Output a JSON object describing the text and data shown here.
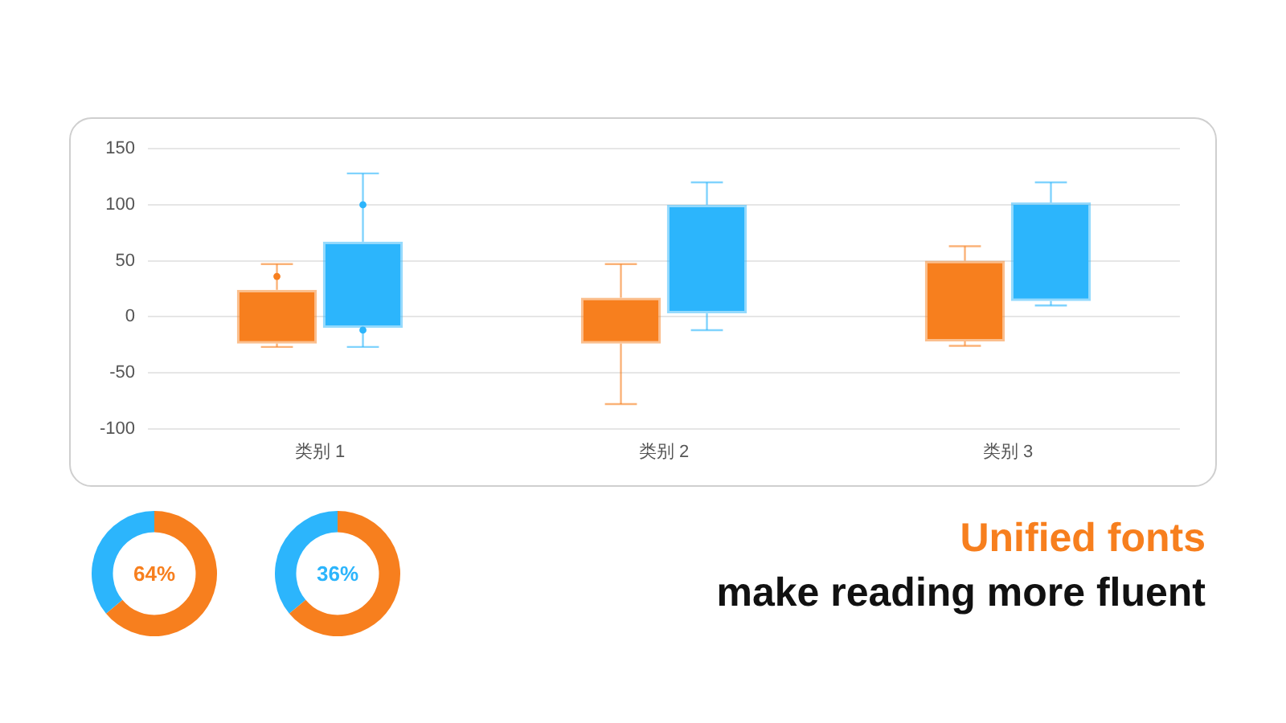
{
  "chart_data": [
    {
      "type": "box",
      "categories": [
        "类别 1",
        "类别 2",
        "类别 3"
      ],
      "ylim": [
        -100,
        150
      ],
      "yticks": [
        -100,
        -50,
        0,
        50,
        100,
        150
      ],
      "grid": "y",
      "legend": false,
      "series": [
        {
          "color": "#f77f1e",
          "boxes": [
            {
              "low": -27,
              "q1": -24,
              "q3": 24,
              "high": 47,
              "outliers": [
                36
              ]
            },
            {
              "low": -78,
              "q1": -24,
              "q3": 17,
              "high": 47
            },
            {
              "low": -26,
              "q1": -22,
              "q3": 50,
              "high": 63
            }
          ]
        },
        {
          "color": "#2cb5fc",
          "boxes": [
            {
              "low": -27,
              "q1": -10,
              "q3": 67,
              "high": 128,
              "outliers": [
                100,
                -12
              ]
            },
            {
              "low": -12,
              "q1": 3,
              "q3": 100,
              "high": 120
            },
            {
              "low": 10,
              "q1": 14,
              "q3": 102,
              "high": 120
            }
          ]
        }
      ]
    },
    {
      "type": "donut",
      "categories": [
        null,
        null
      ],
      "values": [
        64,
        36
      ],
      "colors": [
        "#f77f1e",
        "#2cb5fc"
      ],
      "annotations": [
        "64%"
      ]
    },
    {
      "type": "donut",
      "categories": [
        null,
        null
      ],
      "values": [
        36,
        64
      ],
      "colors": [
        "#2cb5fc",
        "#f77f1e"
      ],
      "annotations": [
        "36%"
      ]
    },
    {
      "type": "other",
      "title": "Unified fonts",
      "subtitle": "make reading more fluent"
    }
  ]
}
